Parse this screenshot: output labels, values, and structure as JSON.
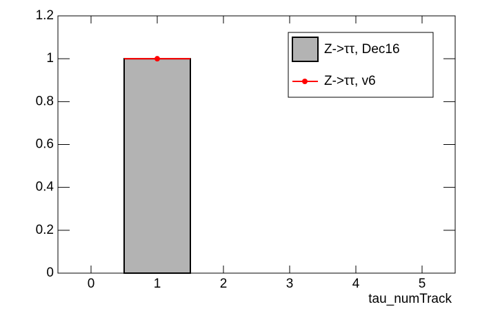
{
  "chart_data": {
    "type": "histogram",
    "bins": [
      -0.5,
      0.5,
      1.5,
      2.5,
      3.5,
      4.5,
      5.5
    ],
    "series": [
      {
        "name": "Z->ττ, Dec16",
        "color": "#b3b3b3",
        "values": [
          0,
          1,
          0,
          0,
          0,
          0
        ]
      },
      {
        "name": "Z->ττ, v6",
        "color": "#ff0000",
        "x": [
          1
        ],
        "values": [
          1
        ]
      }
    ],
    "x_label": "tau_numTrack",
    "xlim": [
      -0.5,
      5.5
    ],
    "xticks": [
      0,
      1,
      2,
      3,
      4,
      5
    ],
    "ylim": [
      0,
      1.2
    ],
    "yticks": [
      0,
      0.2,
      0.4,
      0.6,
      0.8,
      1,
      1.2
    ],
    "legend": "top-right"
  }
}
